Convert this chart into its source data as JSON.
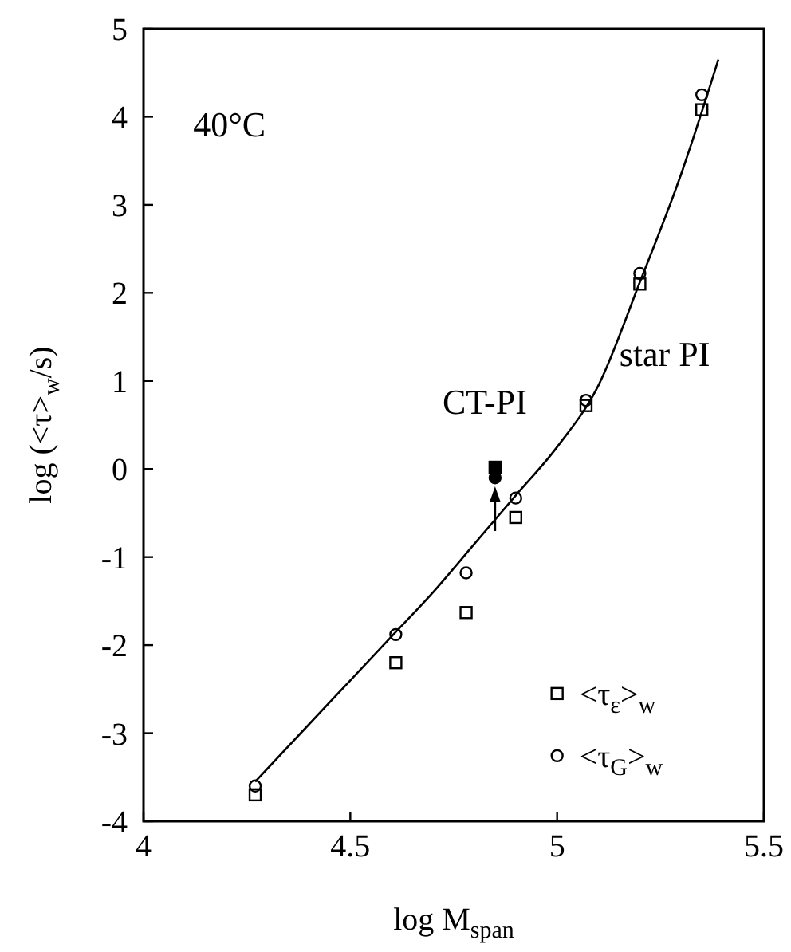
{
  "chart_data": {
    "type": "scatter",
    "xlabel": "log M$_{span}$",
    "ylabel": "log (<τ>$_{w}$/s)",
    "xlim": [
      4,
      5.5
    ],
    "ylim": [
      -4,
      5
    ],
    "xticks": [
      4,
      4.5,
      5,
      5.5
    ],
    "yticks": [
      5,
      4,
      3,
      2,
      1,
      0,
      -1,
      -2,
      -3,
      -4
    ],
    "legend": "bottom right",
    "grid": false,
    "series": [
      {
        "name": "<τ$_{ε}$>$_{w}$",
        "color": "#000000",
        "marker": "square",
        "x": [
          4.27,
          4.61,
          4.78,
          4.9,
          5.07,
          5.2,
          5.35
        ],
        "values": [
          -3.7,
          -2.2,
          -1.63,
          -0.55,
          0.72,
          2.1,
          4.08
        ]
      },
      {
        "name": "<τ$_{G}$>$_{w}$",
        "color": "#000000",
        "marker": "circle",
        "x": [
          4.27,
          4.61,
          4.78,
          4.9,
          5.07,
          5.2,
          5.35
        ],
        "values": [
          -3.6,
          -1.88,
          -1.18,
          -0.33,
          0.78,
          2.22,
          4.25
        ]
      },
      {
        "color": "#000000",
        "marker": "square",
        "x": [
          4.85
        ],
        "values": [
          0.02
        ]
      },
      {
        "color": "#000000",
        "marker": "circle",
        "x": [
          4.85
        ],
        "values": [
          -0.1
        ]
      },
      {
        "type": "line",
        "color": "#000000",
        "marker": "none",
        "x": [
          4.27,
          4.4,
          4.5,
          4.6,
          4.7,
          4.8,
          4.9,
          5.0,
          5.1,
          5.2,
          5.3,
          5.39
        ],
        "values": [
          -3.55,
          -2.9,
          -2.4,
          -1.9,
          -1.4,
          -0.85,
          -0.3,
          0.25,
          0.95,
          2.12,
          3.35,
          4.65
        ]
      }
    ],
    "annotations": [
      "40°C",
      "CT-PI",
      "star PI"
    ]
  }
}
